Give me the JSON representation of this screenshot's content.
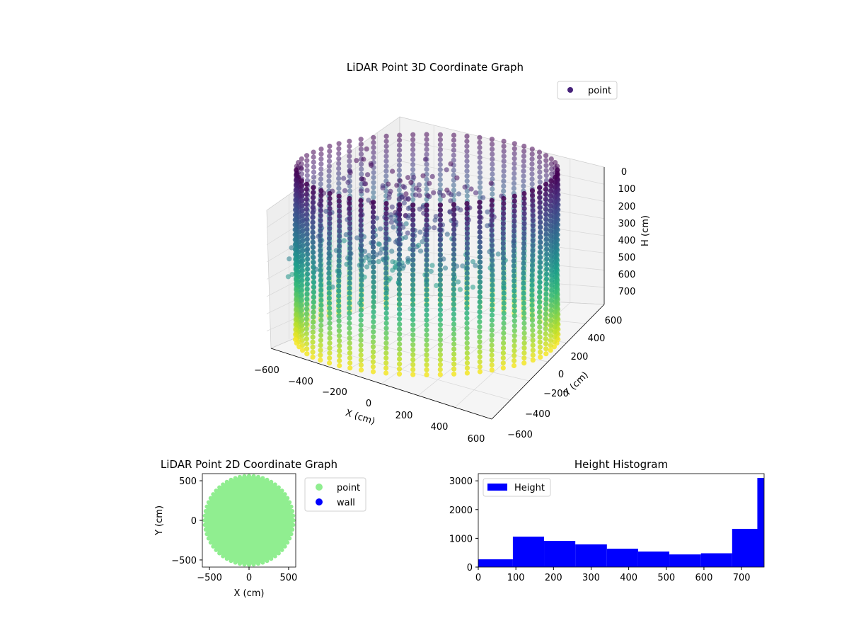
{
  "chart_data": [
    {
      "id": "chart3d",
      "type": "scatter",
      "title": "LiDAR Point 3D Coordinate Graph",
      "xlabel": "X (cm)",
      "ylabel": "Y (cm)",
      "zlabel": "H (cm)",
      "xlim": [
        -600,
        600
      ],
      "ylim": [
        -600,
        600
      ],
      "zlim": [
        0,
        760
      ],
      "x_ticks": [
        "−600",
        "−400",
        "−200",
        "0",
        "200",
        "400",
        "600"
      ],
      "y_ticks": [
        "−600",
        "−400",
        "−200",
        "0",
        "200",
        "400",
        "600"
      ],
      "z_ticks": [
        "0",
        "100",
        "200",
        "300",
        "400",
        "500",
        "600",
        "700"
      ],
      "z_inverted": true,
      "colormap": "viridis",
      "legend": {
        "position": "top-right",
        "entries": [
          {
            "label": "point",
            "color": "#46227a"
          }
        ]
      },
      "grid": true,
      "structure": {
        "description_values": "cylindrical wall of points, radius ~ 560 cm, height 0 to 760 cm",
        "wall_radius": 560,
        "height_range": [
          0,
          760
        ],
        "vertical_column_count": 60,
        "interior_clutter_height_range": [
          0,
          450
        ]
      }
    },
    {
      "id": "chart2d",
      "type": "scatter",
      "title": "LiDAR Point 2D Coordinate Graph",
      "xlabel": "X (cm)",
      "ylabel": "Y (cm)",
      "xlim": [
        -590,
        590
      ],
      "ylim": [
        -590,
        590
      ],
      "x_ticks": [
        "−500",
        "0",
        "500"
      ],
      "y_ticks": [
        "500",
        "0",
        "−500"
      ],
      "legend": {
        "position": "outside-right",
        "entries": [
          {
            "label": "point",
            "color": "#90ee90"
          },
          {
            "label": "wall",
            "color": "#0000ff"
          }
        ]
      },
      "series": [
        {
          "name": "point",
          "shape": "filled disc",
          "center": [
            0,
            0
          ],
          "radius": 560,
          "color": "#90ee90"
        },
        {
          "name": "wall",
          "points": 0,
          "color": "#0000ff"
        }
      ]
    },
    {
      "id": "histogram",
      "type": "bar",
      "title": "Height Histogram",
      "xlim": [
        0,
        760
      ],
      "ylim": [
        0,
        3250
      ],
      "x_ticks": [
        "0",
        "100",
        "200",
        "300",
        "400",
        "500",
        "600",
        "700"
      ],
      "y_ticks": [
        "0",
        "1000",
        "2000",
        "3000"
      ],
      "color": "#0000ff",
      "legend": {
        "position": "top-left",
        "entries": [
          {
            "label": "Height",
            "color": "#0000ff"
          }
        ]
      },
      "bin_edges": [
        0,
        92,
        175,
        258,
        342,
        425,
        508,
        592,
        675,
        760
      ],
      "counts": [
        270,
        1060,
        910,
        790,
        640,
        540,
        440,
        480,
        1330
      ],
      "extra_bin": {
        "edges": [
          742,
          760
        ],
        "count": 3100
      }
    }
  ]
}
